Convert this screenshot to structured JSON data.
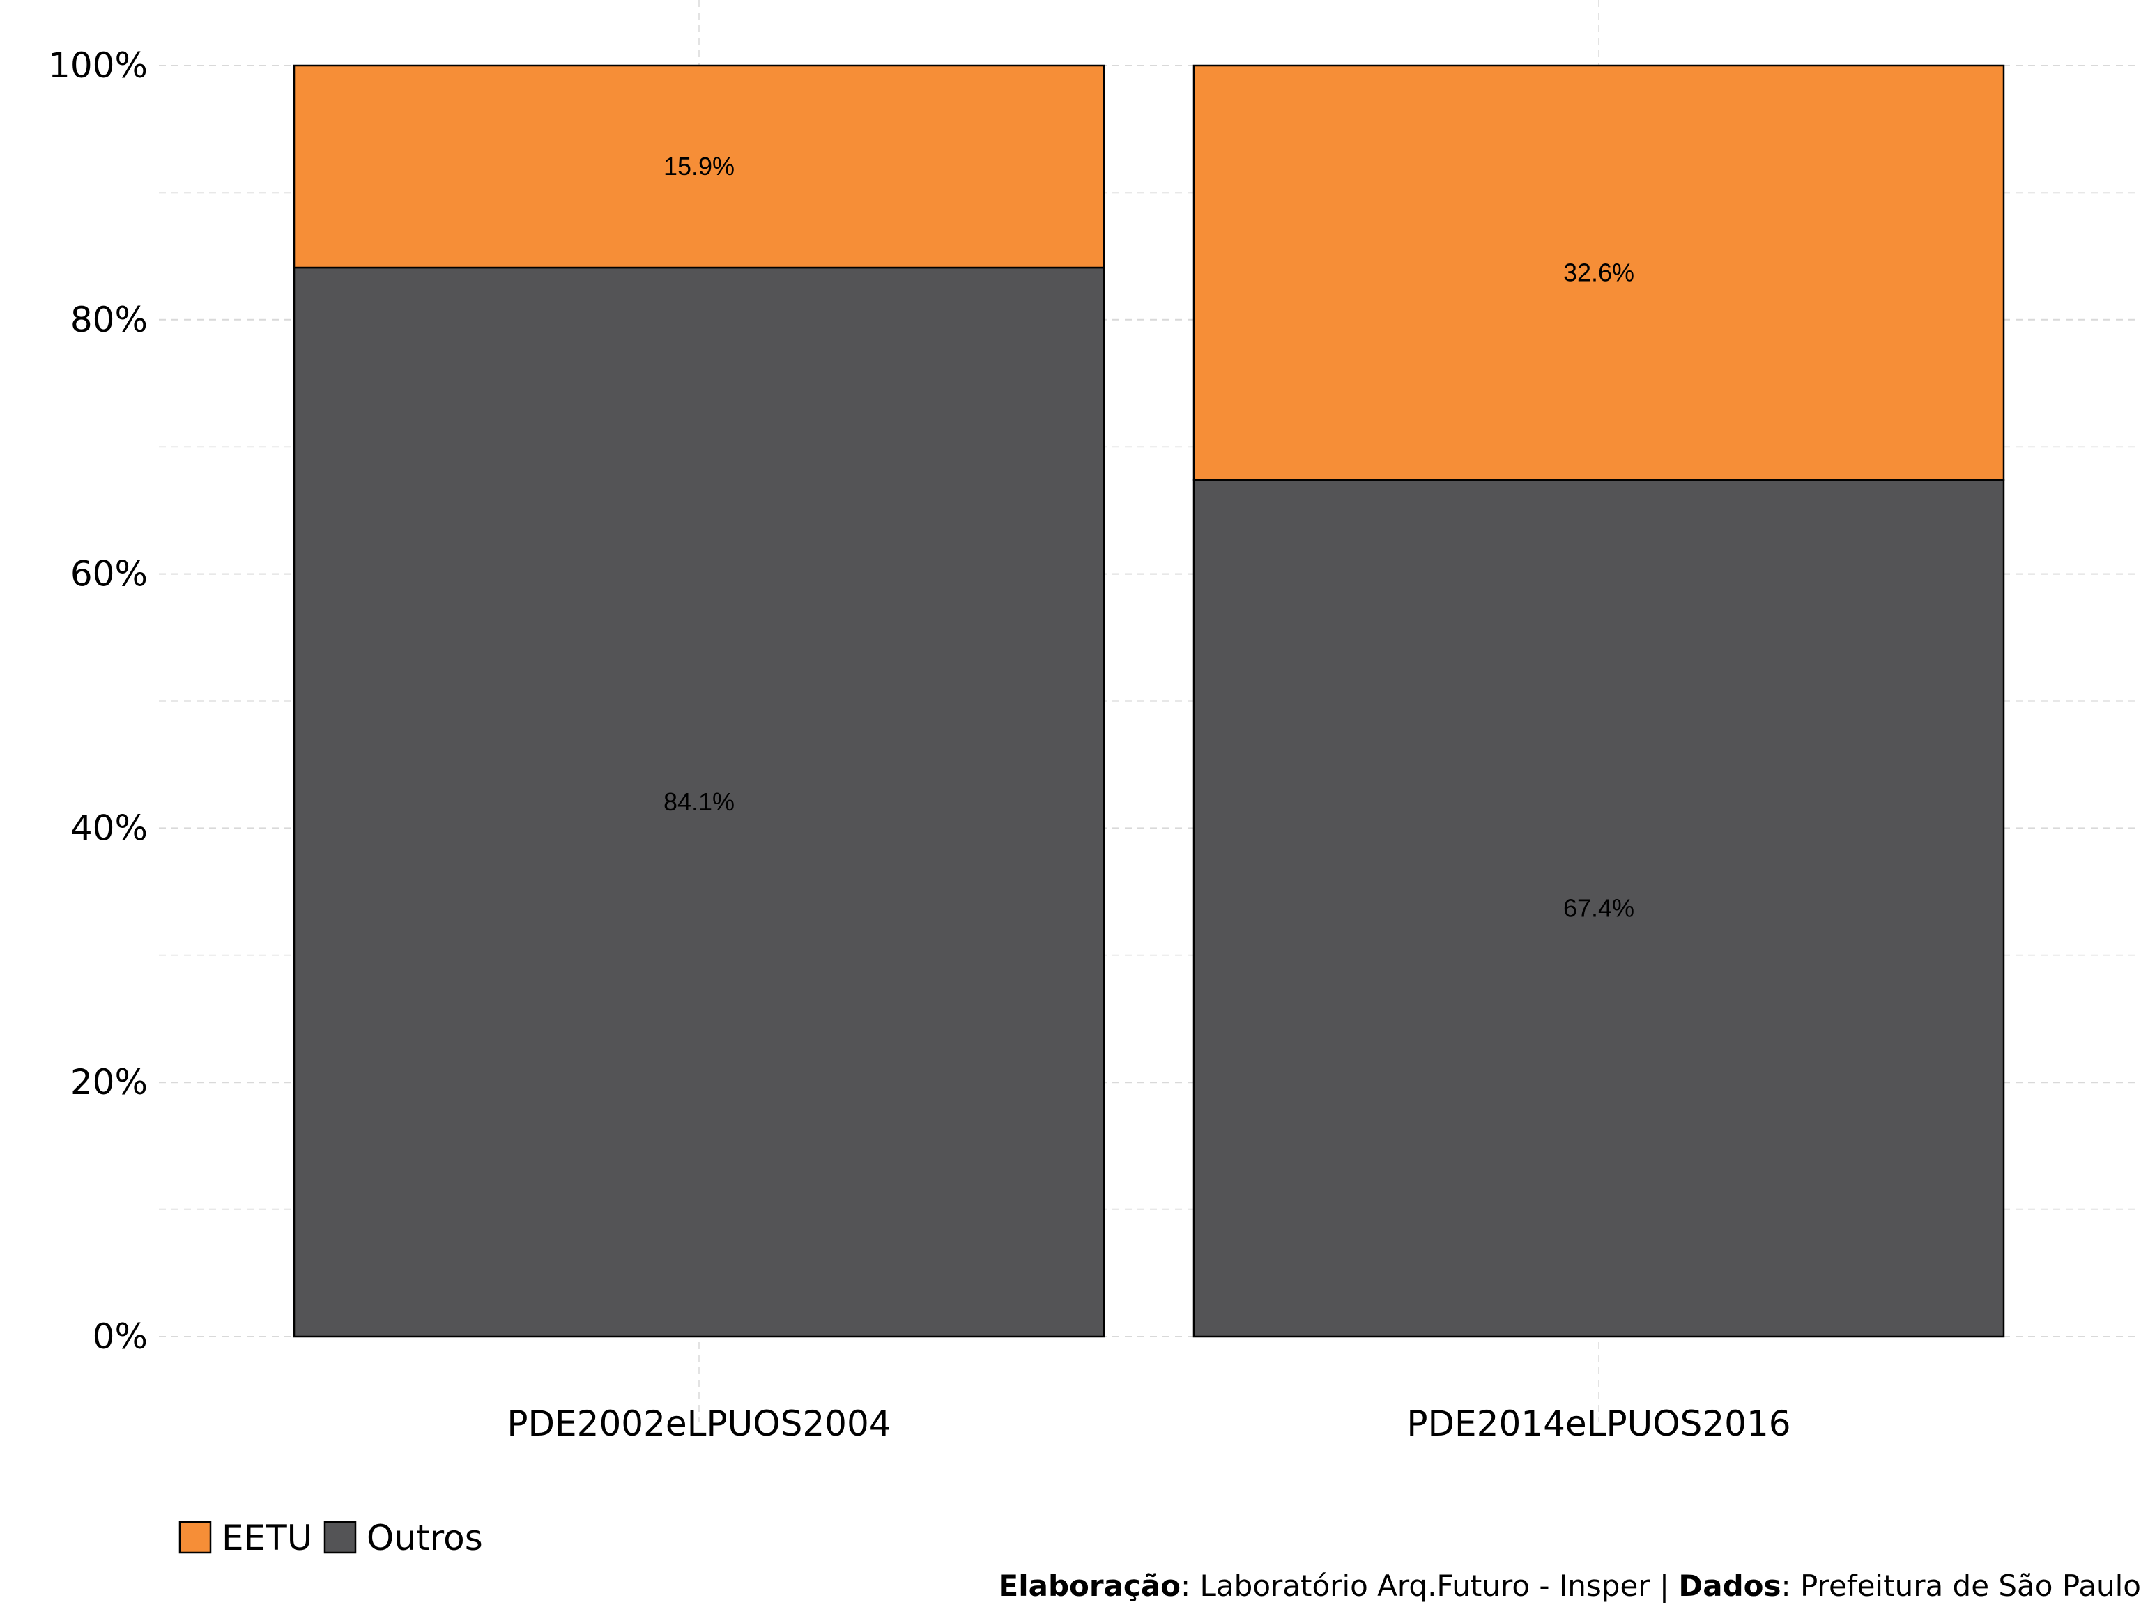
{
  "chart_data": {
    "type": "bar",
    "stacked": true,
    "percent": true,
    "categories": [
      "PDE2002eLPUOS2004",
      "PDE2014eLPUOS2016"
    ],
    "series": [
      {
        "name": "Outros",
        "values": [
          84.1,
          67.4
        ],
        "color": "#545456",
        "labels": [
          "84.1%",
          "67.4%"
        ]
      },
      {
        "name": "EETU",
        "values": [
          15.9,
          32.6
        ],
        "color": "#f68e37",
        "labels": [
          "15.9%",
          "32.6%"
        ]
      }
    ],
    "ylim": [
      0,
      100
    ],
    "yticks": [
      0,
      20,
      40,
      60,
      80,
      100
    ],
    "ytick_labels": [
      "0%",
      "20%",
      "40%",
      "60%",
      "80%",
      "100%"
    ],
    "grid": true,
    "legend": {
      "position": "bottom-left",
      "order": [
        "EETU",
        "Outros"
      ]
    }
  },
  "caption": {
    "elaboracao_label": "Elaboração",
    "elaboracao_text": ": Laboratório Arq.Futuro - Insper | ",
    "dados_label": "Dados",
    "dados_text": ": Prefeitura de São Paulo"
  }
}
